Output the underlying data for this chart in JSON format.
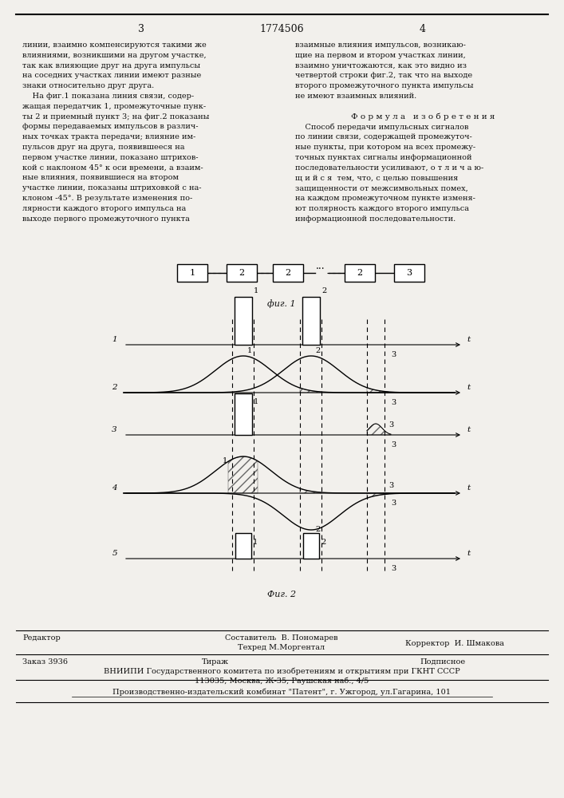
{
  "page_number_left": "3",
  "patent_number": "1774506",
  "page_number_right": "4",
  "bg_color": "#f2f0ec",
  "left_col_lines": [
    "линии, взаимно компенсируются такими же",
    "влияниями, возникшими на другом участке,",
    "так как влияющие друг на друга импульсы",
    "на соседних участках линии имеют разные",
    "знаки относительно друг друга.",
    "    На фиг.1 показана линия связи, содер-",
    "жащая передатчик 1, промежуточные пунк-",
    "ты 2 и приемный пункт 3; на фиг.2 показаны",
    "формы передаваемых импульсов в различ-",
    "ных точках тракта передачи; влияние им-",
    "пульсов друг на друга, появившееся на",
    "первом участке линии, показано штрихов-",
    "кой с наклоном 45° к оси времени, а взаим-",
    "ные влияния, появившиеся на втором",
    "участке линии, показаны штриховкой с на-",
    "клоном -45°. В результате изменения по-",
    "лярности каждого второго импульса на",
    "выходе первого промежуточного пункта"
  ],
  "right_col_lines": [
    "взаимные влияния импульсов, возникаю-",
    "щие на первом и втором участках линии,",
    "взаимно уничтожаются, как это видно из",
    "четвертой строки фиг.2, так что на выходе",
    "второго промежуточного пункта импульсы",
    "не имеют взаимных влияний.",
    "",
    "Ф о р м у л а   и з о б р е т е н и я",
    "    Способ передачи импульсных сигналов",
    "по линии связи, содержащей промежуточ-",
    "ные пункты, при котором на всех промежу-",
    "точных пунктах сигналы информационной",
    "последовательности усиливают, о т л и ч а ю-",
    "щ и й с я  тем, что, с целью повышения",
    "защищенности от межсимвольных помех,",
    "на каждом промежуточном пункте изменя-",
    "ют полярность каждого второго импульса",
    "информационной последовательности."
  ],
  "fig1_label": "фиг. 1",
  "fig2_label": "Фиг. 2",
  "footer_editor": "Редактор",
  "footer_composer": "Составитель  В. Пономарев",
  "footer_techred": "Техред М.Моргентал",
  "footer_corrector": "Корректор  И. Шмакова",
  "footer_order": "Заказ 3936",
  "footer_tirazh": "Тираж",
  "footer_podpisnoe": "Подписное",
  "footer_vniipи": "ВНИИПИ Государственного комитета по изобретениям и открытиям при ГКНТ СССР",
  "footer_address": "113035, Москва, Ж-35, Раушская наб., 4/5",
  "footer_patent": "Производственно-издательский комбинат \"Патент\", г. Ужгород, ул.Гагарина, 101"
}
